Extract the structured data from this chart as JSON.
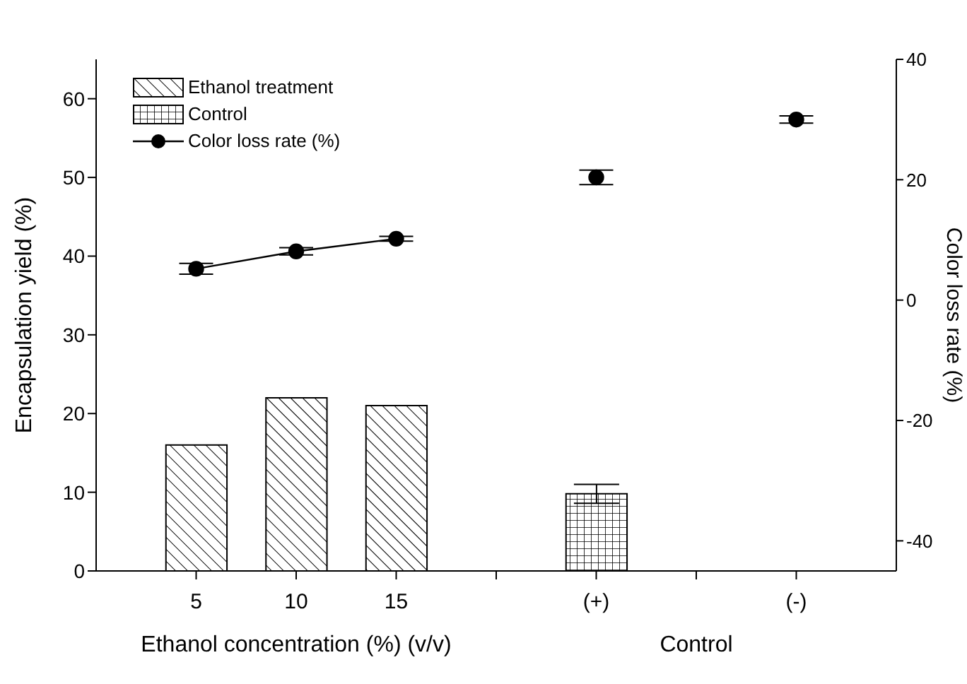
{
  "chart_data": {
    "type": "bar",
    "categories": [
      "5",
      "10",
      "15",
      null,
      "(+)",
      null,
      "(-)"
    ],
    "xlabel": "Ethanol concentration (%) (v/v)",
    "ylabel": "Encapsulation yield (%)",
    "y2label": "Color loss rate (%)",
    "annotations": [
      "Control"
    ],
    "series": [
      {
        "name": "Ethanol treatment",
        "color": "#000000",
        "values": [
          16,
          22,
          21,
          null,
          null,
          null,
          null
        ]
      },
      {
        "name": "Control",
        "color": "#000000",
        "values": [
          null,
          null,
          null,
          null,
          9.8,
          null,
          null
        ],
        "errors": [
          null,
          null,
          null,
          null,
          1.2,
          null,
          null
        ]
      },
      {
        "name": "Color loss rate (%)",
        "type": "line",
        "axis": "y2",
        "color": "#000000",
        "values": [
          5.2,
          8.1,
          10.2,
          null,
          20.4,
          null,
          30.0
        ],
        "errors": [
          0.9,
          0.6,
          0.4,
          null,
          1.2,
          null,
          0.6
        ]
      }
    ],
    "ylim": [
      0,
      65
    ],
    "yticks": [
      0,
      10,
      20,
      30,
      40,
      50,
      60
    ],
    "y2lim": [
      -45,
      40
    ],
    "y2ticks": [
      -40,
      -20,
      0,
      20,
      40
    ],
    "marker": "circle",
    "line_style": "solid",
    "grid": false,
    "legend": "top left"
  }
}
